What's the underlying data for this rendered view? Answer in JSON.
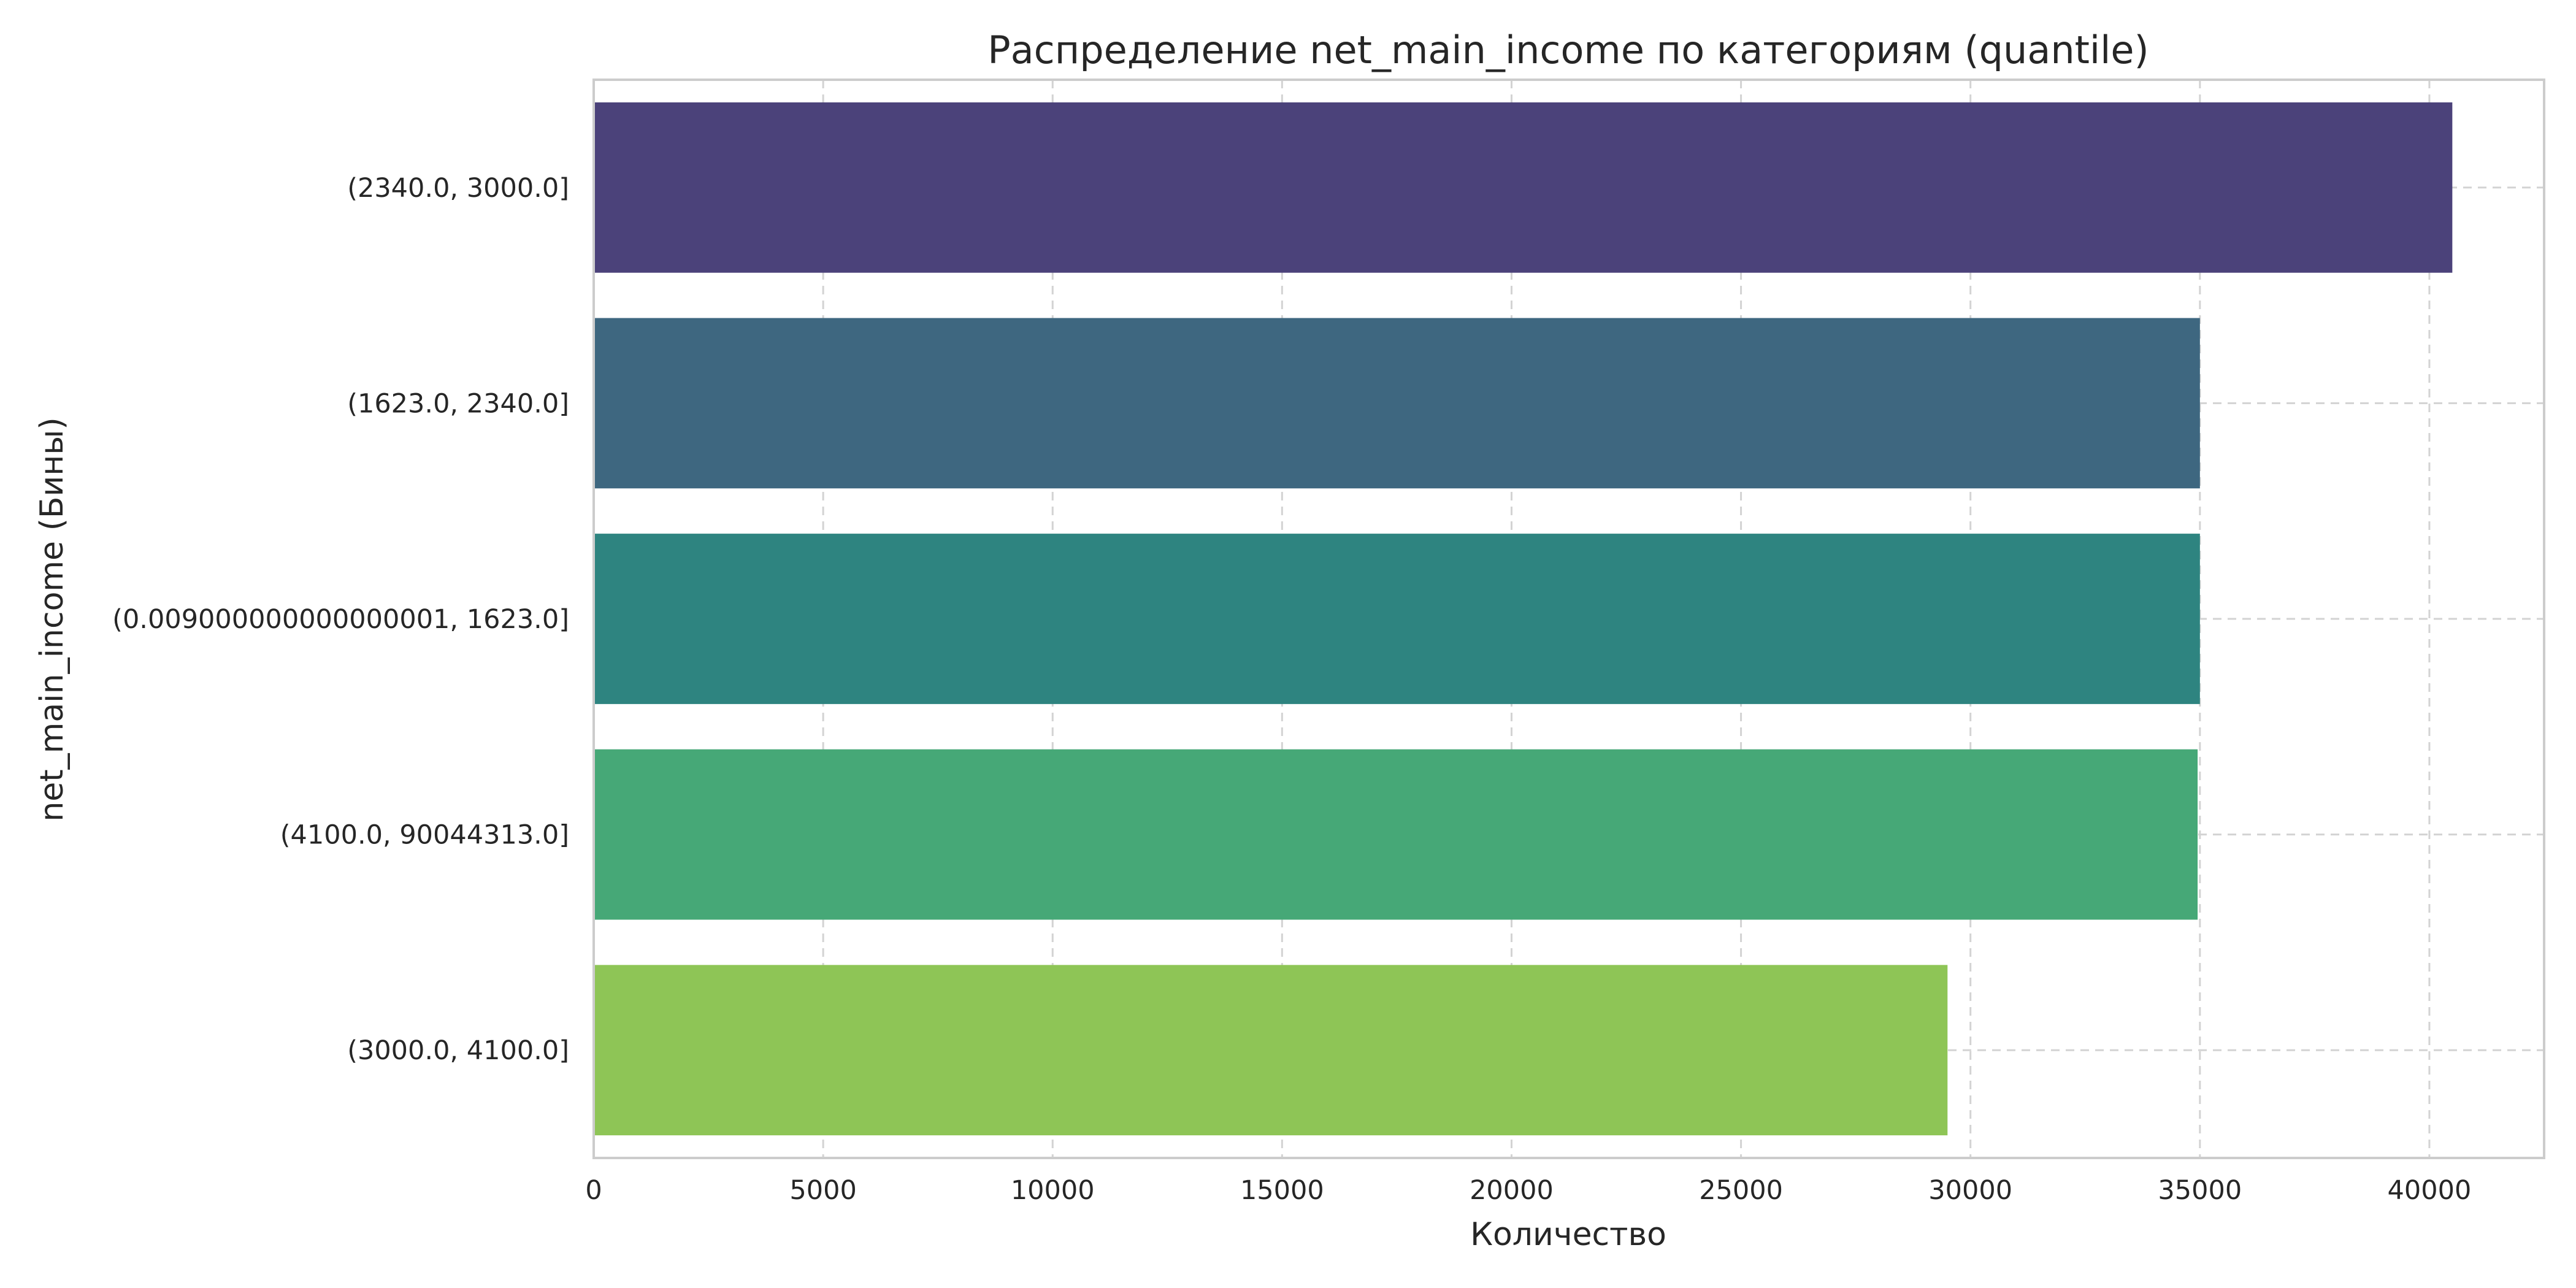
{
  "chart_data": {
    "type": "bar",
    "orientation": "horizontal",
    "title": "Распределение net_main_income по категориям (quantile)",
    "xlabel": "Количество",
    "ylabel": "net_main_income (Бины)",
    "categories": [
      "(2340.0, 3000.0]",
      "(1623.0, 2340.0]",
      "(0.009000000000000001, 1623.0]",
      "(4100.0, 90044313.0]",
      "(3000.0, 4100.0]"
    ],
    "values": [
      40500,
      35000,
      35000,
      34950,
      29500
    ],
    "colors": [
      "#4b427a",
      "#3e6780",
      "#2e8480",
      "#46a877",
      "#8ec556"
    ],
    "xlim": [
      0,
      42500
    ],
    "xticks": [
      0,
      5000,
      10000,
      15000,
      20000,
      25000,
      30000,
      35000,
      40000
    ],
    "xtick_labels": [
      "0",
      "5000",
      "10000",
      "15000",
      "20000",
      "25000",
      "30000",
      "35000",
      "40000"
    ],
    "grid": true,
    "grid_style": "dashed"
  }
}
